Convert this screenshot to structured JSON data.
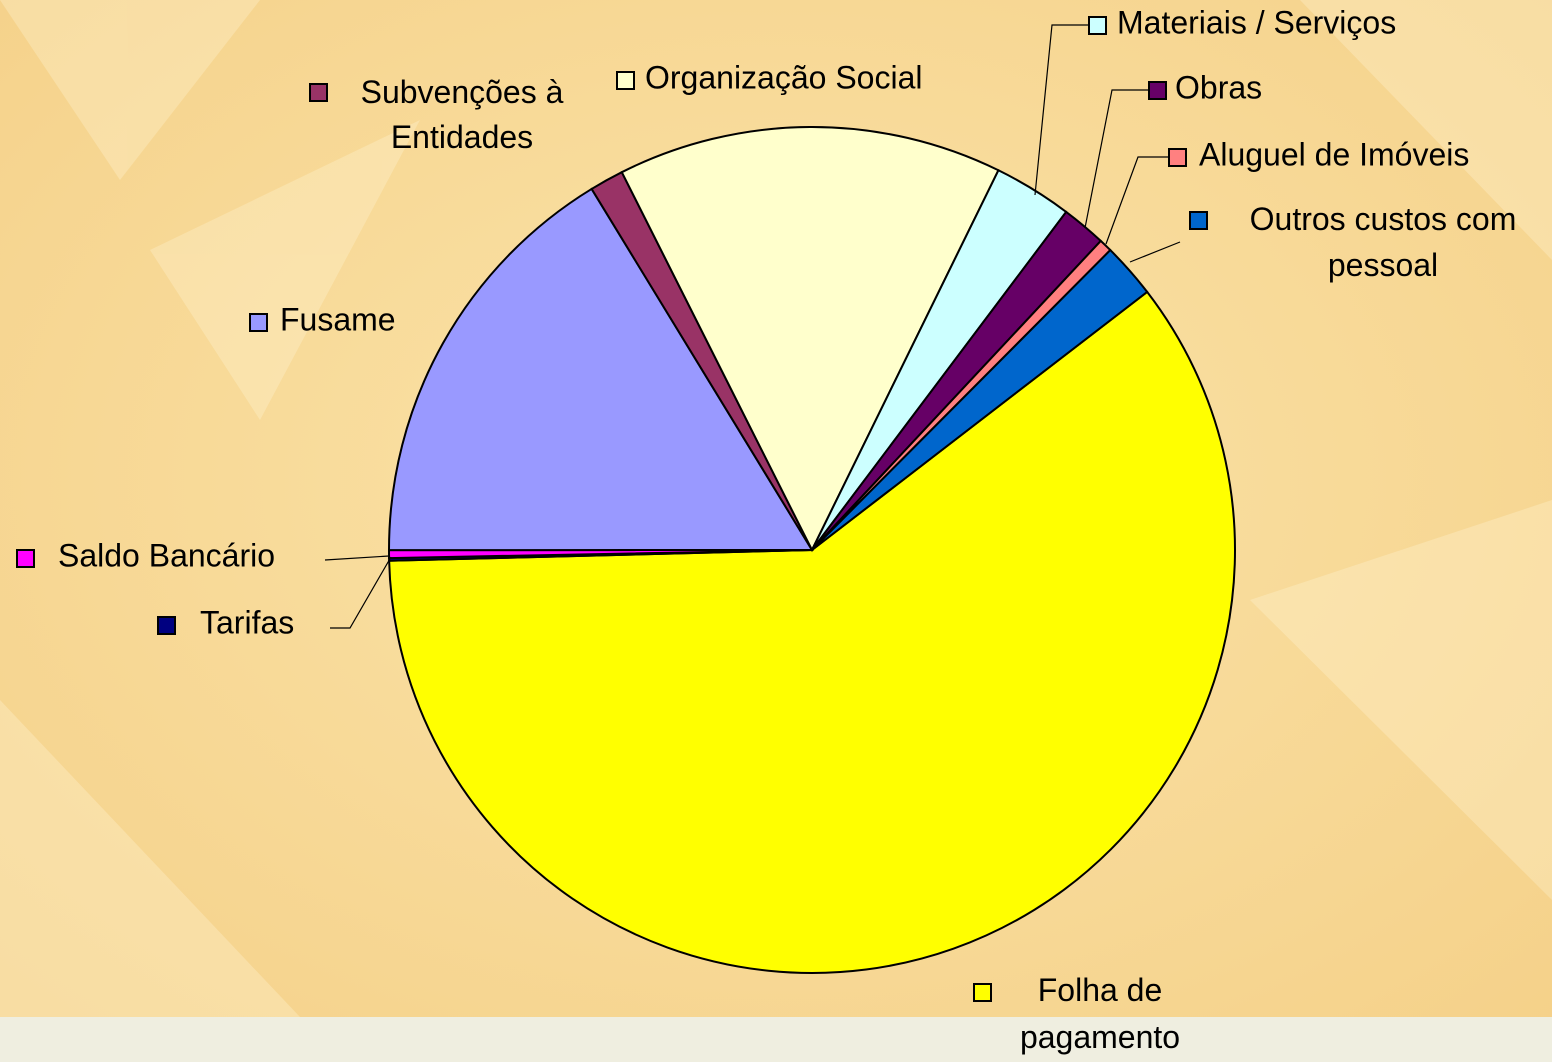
{
  "chart_data": {
    "type": "pie",
    "categories": [
      "Folha de pagamento",
      "Tarifas",
      "Saldo Bancário",
      "Fusame",
      "Subvenções à Entidades",
      "Organização Social",
      "Materiais / Serviços",
      "Obras",
      "Aluguel de Imóveis",
      "Outros custos com pessoal"
    ],
    "values": [
      60.1,
      0.1,
      0.3,
      16.3,
      1.3,
      14.7,
      3.0,
      1.7,
      0.5,
      2.1
    ],
    "colors": [
      "#ffff00",
      "#000080",
      "#ff00ff",
      "#9999ff",
      "#993366",
      "#ffffcc",
      "#ccffff",
      "#660066",
      "#ff8080",
      "#0066cc"
    ]
  }
}
